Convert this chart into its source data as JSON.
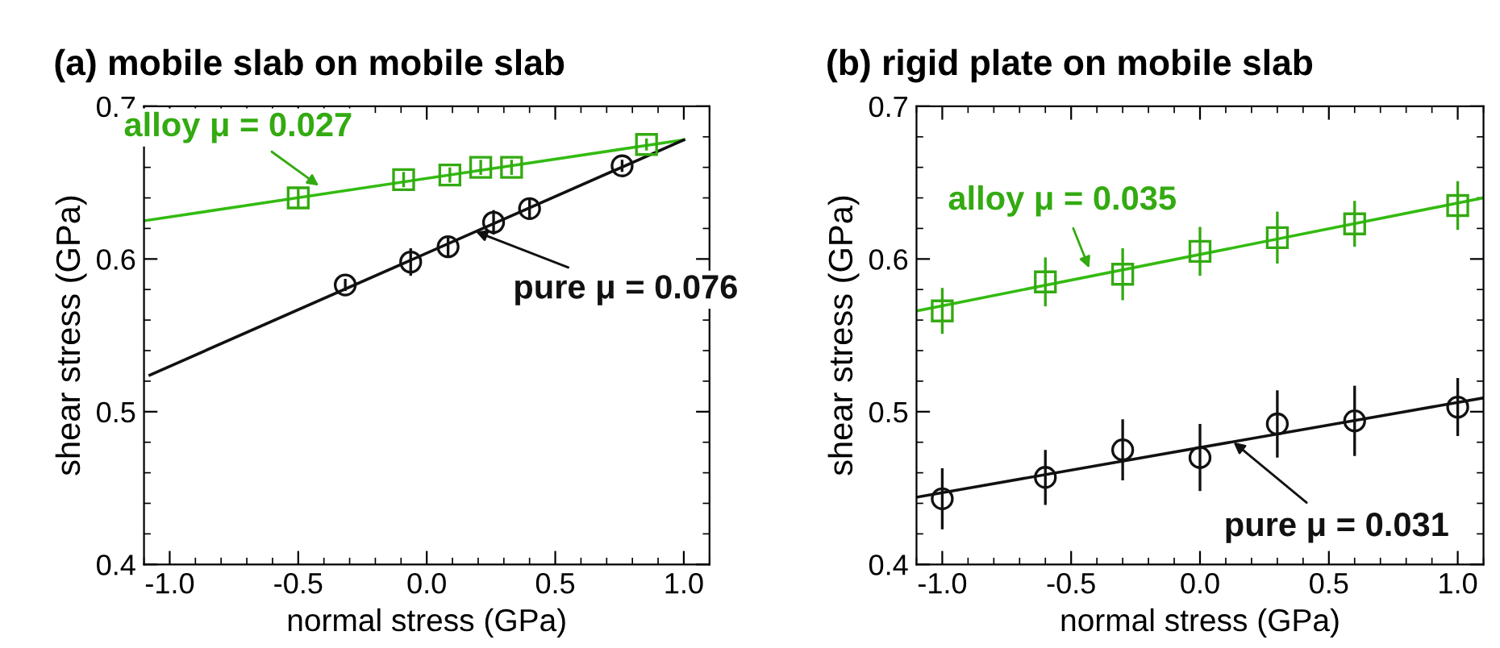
{
  "chart_data": [
    {
      "type": "scatter",
      "title": "(a) mobile slab on mobile slab",
      "xlabel": "normal stress (GPa)",
      "ylabel": "shear stress (GPa)",
      "xlim": [
        -1.1,
        1.1
      ],
      "ylim": [
        0.4,
        0.7
      ],
      "xticks": [
        {
          "value": -1,
          "label": "-1.0"
        },
        {
          "value": -0.5,
          "label": "-0.5"
        },
        {
          "value": 0,
          "label": "0.0"
        },
        {
          "value": 0.5,
          "label": "0.5"
        },
        {
          "value": 1,
          "label": "1.0"
        }
      ],
      "yticks": [
        0.4,
        0.5,
        0.6,
        0.7
      ],
      "grid": false,
      "legend": false,
      "series": [
        {
          "color": "#33aa11",
          "marker": "square",
          "x": [
            -0.5,
            -0.09,
            0.09,
            0.21,
            0.33,
            0.855
          ],
          "values": [
            0.64,
            0.652,
            0.655,
            0.66,
            0.66,
            0.675
          ],
          "errors": [
            0.006,
            0.005,
            0.005,
            0.005,
            0.005,
            0.004
          ]
        },
        {
          "type": "line",
          "color": "#33bb11",
          "x": [
            -1.1,
            1.0
          ],
          "values": [
            0.625,
            0.678
          ]
        },
        {
          "color": "#111111",
          "marker": "circle",
          "x": [
            -0.317,
            -0.0625,
            0.083,
            0.26,
            0.4,
            0.76
          ],
          "values": [
            0.583,
            0.598,
            0.608,
            0.624,
            0.633,
            0.661
          ],
          "errors": [
            0.004,
            0.009,
            0.007,
            0.008,
            0.006,
            0.004
          ]
        },
        {
          "type": "line",
          "color": "#111111",
          "x": [
            -1.077,
            1.0
          ],
          "values": [
            0.524,
            0.678
          ]
        }
      ],
      "annotations": [
        {
          "text": "alloy μ = 0.027",
          "x": -0.42,
          "y": 0.648
        },
        {
          "text": "pure μ = 0.076",
          "x": 0.19,
          "y": 0.618
        }
      ]
    },
    {
      "type": "scatter",
      "title": "(b) rigid plate on mobile slab",
      "xlabel": "normal stress (GPa)",
      "ylabel": "shear stress (GPa)",
      "xlim": [
        -1.1,
        1.1
      ],
      "ylim": [
        0.4,
        0.7
      ],
      "xticks": [
        {
          "value": -1,
          "label": "-1.0"
        },
        {
          "value": -0.5,
          "label": "-0.5"
        },
        {
          "value": 0,
          "label": "0.0"
        },
        {
          "value": 0.5,
          "label": "0.5"
        },
        {
          "value": 1,
          "label": "1.0"
        }
      ],
      "yticks": [
        0.4,
        0.5,
        0.6,
        0.7
      ],
      "grid": false,
      "legend": false,
      "series": [
        {
          "color": "#33aa11",
          "marker": "square",
          "x": [
            -1.0,
            -0.6,
            -0.3,
            0.0,
            0.3,
            0.6,
            1.0
          ],
          "values": [
            0.566,
            0.585,
            0.59,
            0.605,
            0.614,
            0.623,
            0.635
          ],
          "errors": [
            0.015,
            0.016,
            0.017,
            0.016,
            0.017,
            0.015,
            0.016
          ]
        },
        {
          "type": "line",
          "color": "#33bb11",
          "x": [
            -1.1,
            1.1
          ],
          "values": [
            0.566,
            0.64
          ]
        },
        {
          "color": "#111111",
          "marker": "circle",
          "x": [
            -1.0,
            -0.6,
            -0.3,
            0.0,
            0.3,
            0.6,
            1.0
          ],
          "values": [
            0.443,
            0.457,
            0.475,
            0.47,
            0.492,
            0.494,
            0.503
          ],
          "errors": [
            0.02,
            0.018,
            0.02,
            0.022,
            0.022,
            0.023,
            0.019
          ]
        },
        {
          "type": "line",
          "color": "#111111",
          "x": [
            -1.1,
            1.1
          ],
          "values": [
            0.444,
            0.509
          ]
        }
      ],
      "annotations": [
        {
          "text": "alloy μ = 0.035",
          "x": -0.43,
          "y": 0.594
        },
        {
          "text": "pure μ = 0.031",
          "x": 0.13,
          "y": 0.48
        }
      ]
    }
  ]
}
